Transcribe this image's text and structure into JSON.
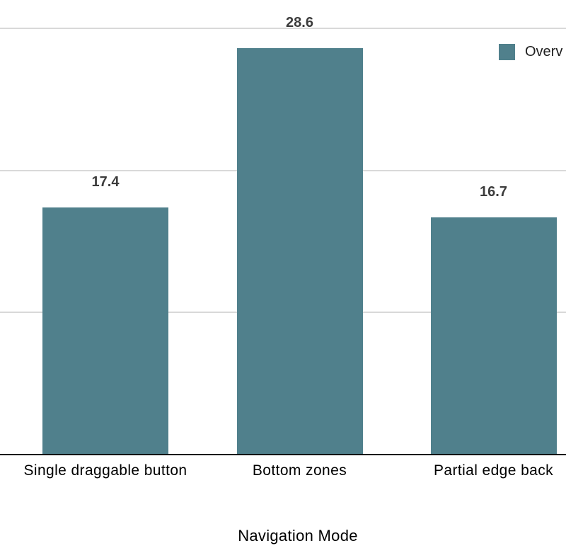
{
  "chart_data": {
    "type": "bar",
    "title": "",
    "xlabel": "Navigation Mode",
    "ylabel": "",
    "categories": [
      "Single draggable button",
      "Bottom zones",
      "Partial edge back"
    ],
    "series": [
      {
        "name": "Overv",
        "values": [
          17.4,
          28.6,
          16.7
        ]
      }
    ],
    "value_labels": [
      "17.4",
      "28.6",
      "16.7"
    ],
    "ylim": [
      0,
      30
    ],
    "gridline_values": [
      10,
      20,
      30
    ],
    "grid": "on",
    "legend_position": "top-right",
    "legend_note": "legend text clipped at right edge of screenshot",
    "bar_color": "#50808C"
  },
  "colors": {
    "bar": "#50808C",
    "gridline": "#d9d9d9",
    "axis_line": "#111111",
    "value_label": "#3c3c3c",
    "category_label": "#000000",
    "legend_label": "#1f1f1f",
    "background": "#ffffff"
  }
}
